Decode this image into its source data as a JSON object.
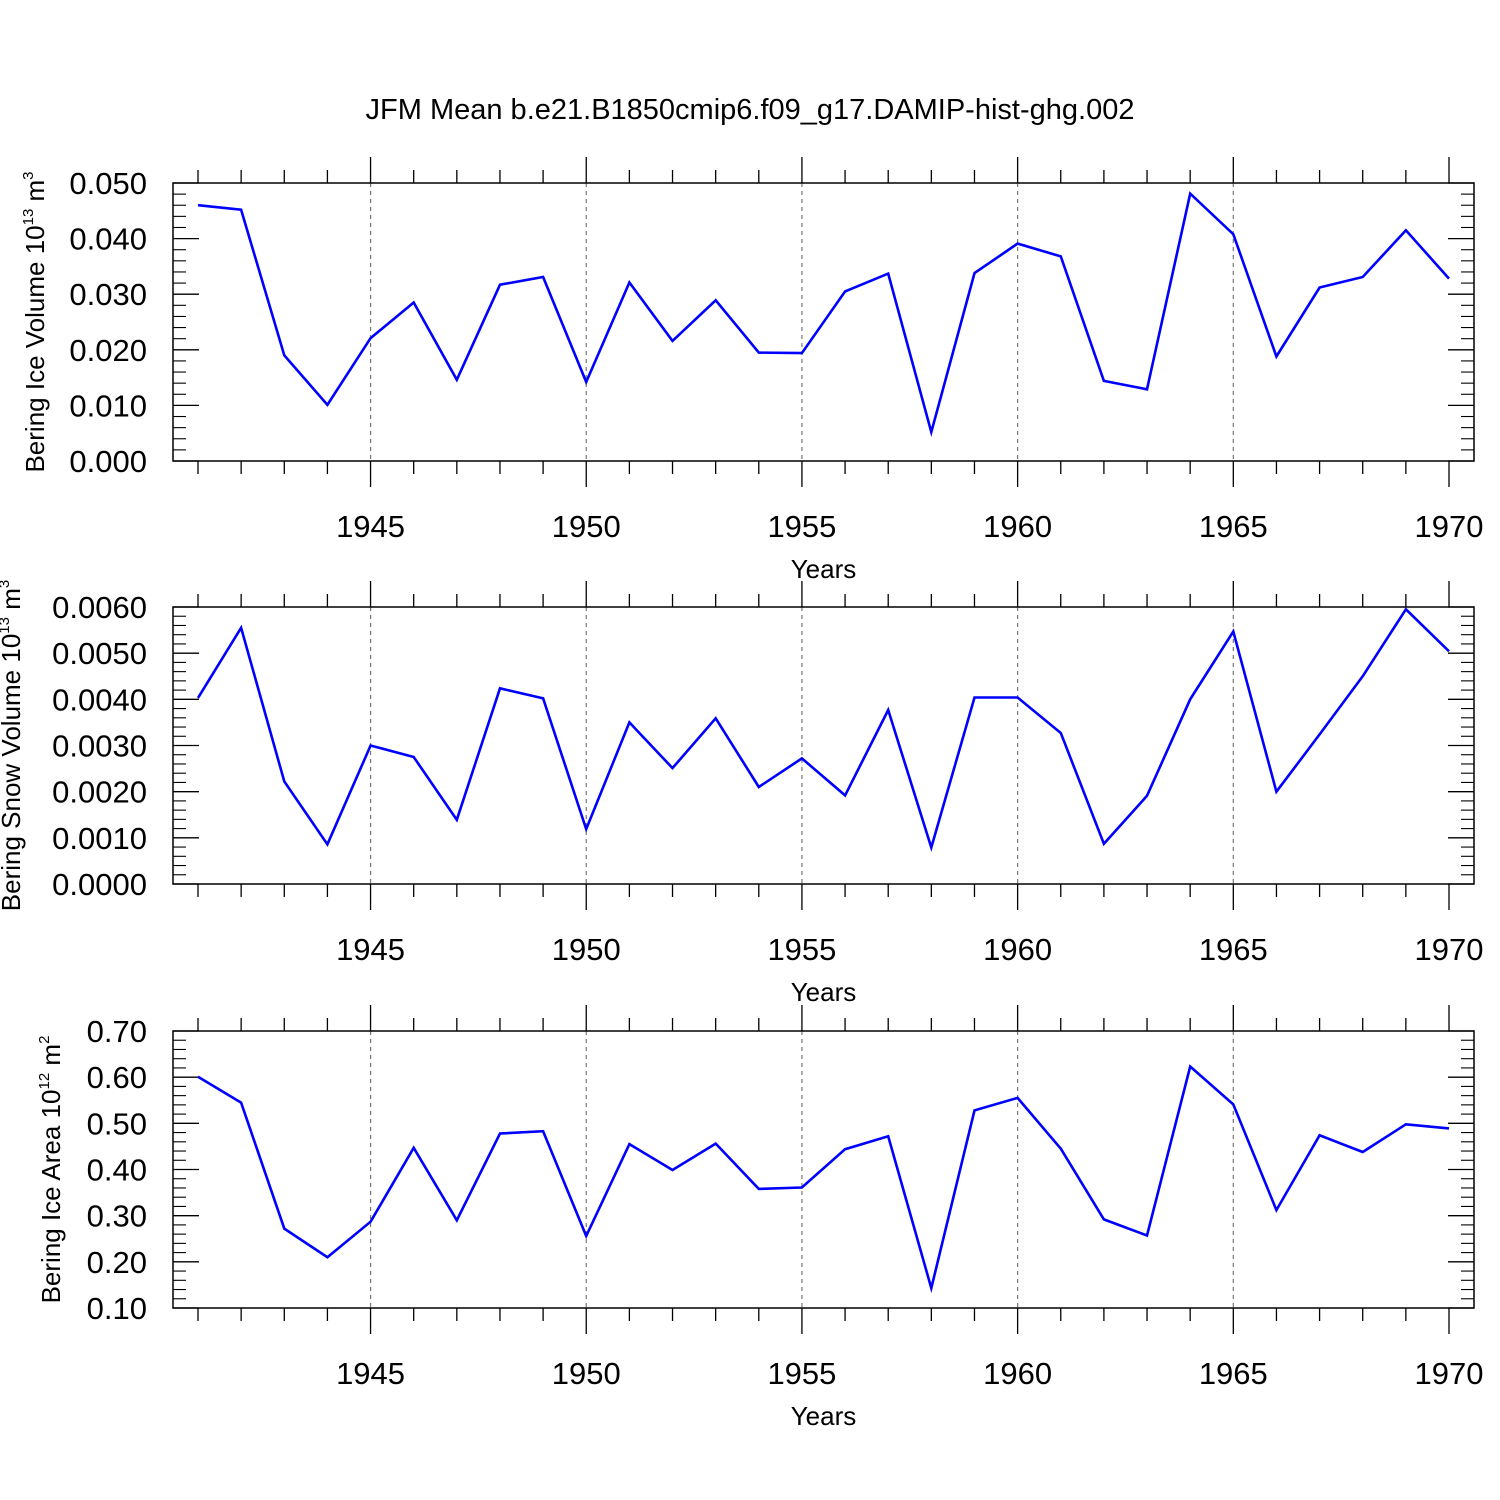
{
  "title": "JFM Mean b.e21.B1850cmip6.f09_g17.DAMIP-hist-ghg.002",
  "colors": {
    "series": "#0000ff",
    "axis": "#000000",
    "grid": "#777777"
  },
  "chart_data": [
    {
      "type": "line",
      "ylabel": {
        "main": "Bering Ice Volume 10",
        "exponent": "13",
        "unit": " m",
        "unit_exponent": "3"
      },
      "xlabel": "Years",
      "xlim": [
        1941,
        1970
      ],
      "ylim": [
        0.0,
        0.05
      ],
      "x_ticks": [
        1945,
        1950,
        1955,
        1960,
        1965,
        1970
      ],
      "x_tick_labels": [
        "1945",
        "1950",
        "1955",
        "1960",
        "1965",
        "1970"
      ],
      "y_ticks": [
        0.0,
        0.01,
        0.02,
        0.03,
        0.04,
        0.05
      ],
      "y_tick_labels": [
        "0.000",
        "0.010",
        "0.020",
        "0.030",
        "0.040",
        "0.050"
      ],
      "grid": "vertical-dashed",
      "series": [
        {
          "name": "Bering Ice Volume",
          "x": [
            1941,
            1942,
            1943,
            1944,
            1945,
            1946,
            1947,
            1948,
            1949,
            1950,
            1951,
            1952,
            1953,
            1954,
            1955,
            1956,
            1957,
            1958,
            1959,
            1960,
            1961,
            1962,
            1963,
            1964,
            1965,
            1966,
            1967,
            1968,
            1969,
            1970
          ],
          "values": [
            0.046,
            0.0452,
            0.019,
            0.0101,
            0.0221,
            0.0285,
            0.0146,
            0.0317,
            0.0331,
            0.0142,
            0.0321,
            0.0216,
            0.0289,
            0.0195,
            0.0194,
            0.0305,
            0.0337,
            0.0052,
            0.0338,
            0.0391,
            0.0368,
            0.0144,
            0.0129,
            0.0481,
            0.0408,
            0.0188,
            0.0312,
            0.0331,
            0.0415,
            0.0328
          ]
        }
      ]
    },
    {
      "type": "line",
      "ylabel": {
        "main": "Bering Snow Volume 10",
        "exponent": "13",
        "unit": " m",
        "unit_exponent": "3"
      },
      "xlabel": "Years",
      "xlim": [
        1941,
        1970
      ],
      "ylim": [
        0.0,
        0.006
      ],
      "x_ticks": [
        1945,
        1950,
        1955,
        1960,
        1965,
        1970
      ],
      "x_tick_labels": [
        "1945",
        "1950",
        "1955",
        "1960",
        "1965",
        "1970"
      ],
      "y_ticks": [
        0.0,
        0.001,
        0.002,
        0.003,
        0.004,
        0.005,
        0.006
      ],
      "y_tick_labels": [
        "0.0000",
        "0.0010",
        "0.0020",
        "0.0030",
        "0.0040",
        "0.0050",
        "0.0060"
      ],
      "grid": "vertical-dashed",
      "series": [
        {
          "name": "Bering Snow Volume",
          "x": [
            1941,
            1942,
            1943,
            1944,
            1945,
            1946,
            1947,
            1948,
            1949,
            1950,
            1951,
            1952,
            1953,
            1954,
            1955,
            1956,
            1957,
            1958,
            1959,
            1960,
            1961,
            1962,
            1963,
            1964,
            1965,
            1966,
            1967,
            1968,
            1969,
            1970
          ],
          "values": [
            0.00403,
            0.00555,
            0.00222,
            0.00086,
            0.003,
            0.00275,
            0.00139,
            0.00424,
            0.00402,
            0.00119,
            0.0035,
            0.00251,
            0.00359,
            0.0021,
            0.00272,
            0.00192,
            0.00377,
            0.00079,
            0.00404,
            0.00404,
            0.00327,
            0.00087,
            0.00191,
            0.004,
            0.00547,
            0.002,
            0.00324,
            0.0045,
            0.00595,
            0.00504
          ]
        }
      ]
    },
    {
      "type": "line",
      "ylabel": {
        "main": "Bering Ice Area 10",
        "exponent": "12",
        "unit": " m",
        "unit_exponent": "2"
      },
      "xlabel": "Years",
      "xlim": [
        1941,
        1970
      ],
      "ylim": [
        0.1,
        0.7
      ],
      "x_ticks": [
        1945,
        1950,
        1955,
        1960,
        1965,
        1970
      ],
      "x_tick_labels": [
        "1945",
        "1950",
        "1955",
        "1960",
        "1965",
        "1970"
      ],
      "y_ticks": [
        0.1,
        0.2,
        0.3,
        0.4,
        0.5,
        0.6,
        0.7
      ],
      "y_tick_labels": [
        "0.10",
        "0.20",
        "0.30",
        "0.40",
        "0.50",
        "0.60",
        "0.70"
      ],
      "grid": "vertical-dashed",
      "series": [
        {
          "name": "Bering Ice Area",
          "x": [
            1941,
            1942,
            1943,
            1944,
            1945,
            1946,
            1947,
            1948,
            1949,
            1950,
            1951,
            1952,
            1953,
            1954,
            1955,
            1956,
            1957,
            1958,
            1959,
            1960,
            1961,
            1962,
            1963,
            1964,
            1965,
            1966,
            1967,
            1968,
            1969,
            1970
          ],
          "values": [
            0.601,
            0.545,
            0.272,
            0.21,
            0.287,
            0.447,
            0.29,
            0.478,
            0.483,
            0.256,
            0.455,
            0.399,
            0.456,
            0.358,
            0.361,
            0.444,
            0.472,
            0.143,
            0.528,
            0.555,
            0.445,
            0.292,
            0.257,
            0.623,
            0.541,
            0.312,
            0.474,
            0.438,
            0.498,
            0.489
          ]
        }
      ]
    }
  ]
}
